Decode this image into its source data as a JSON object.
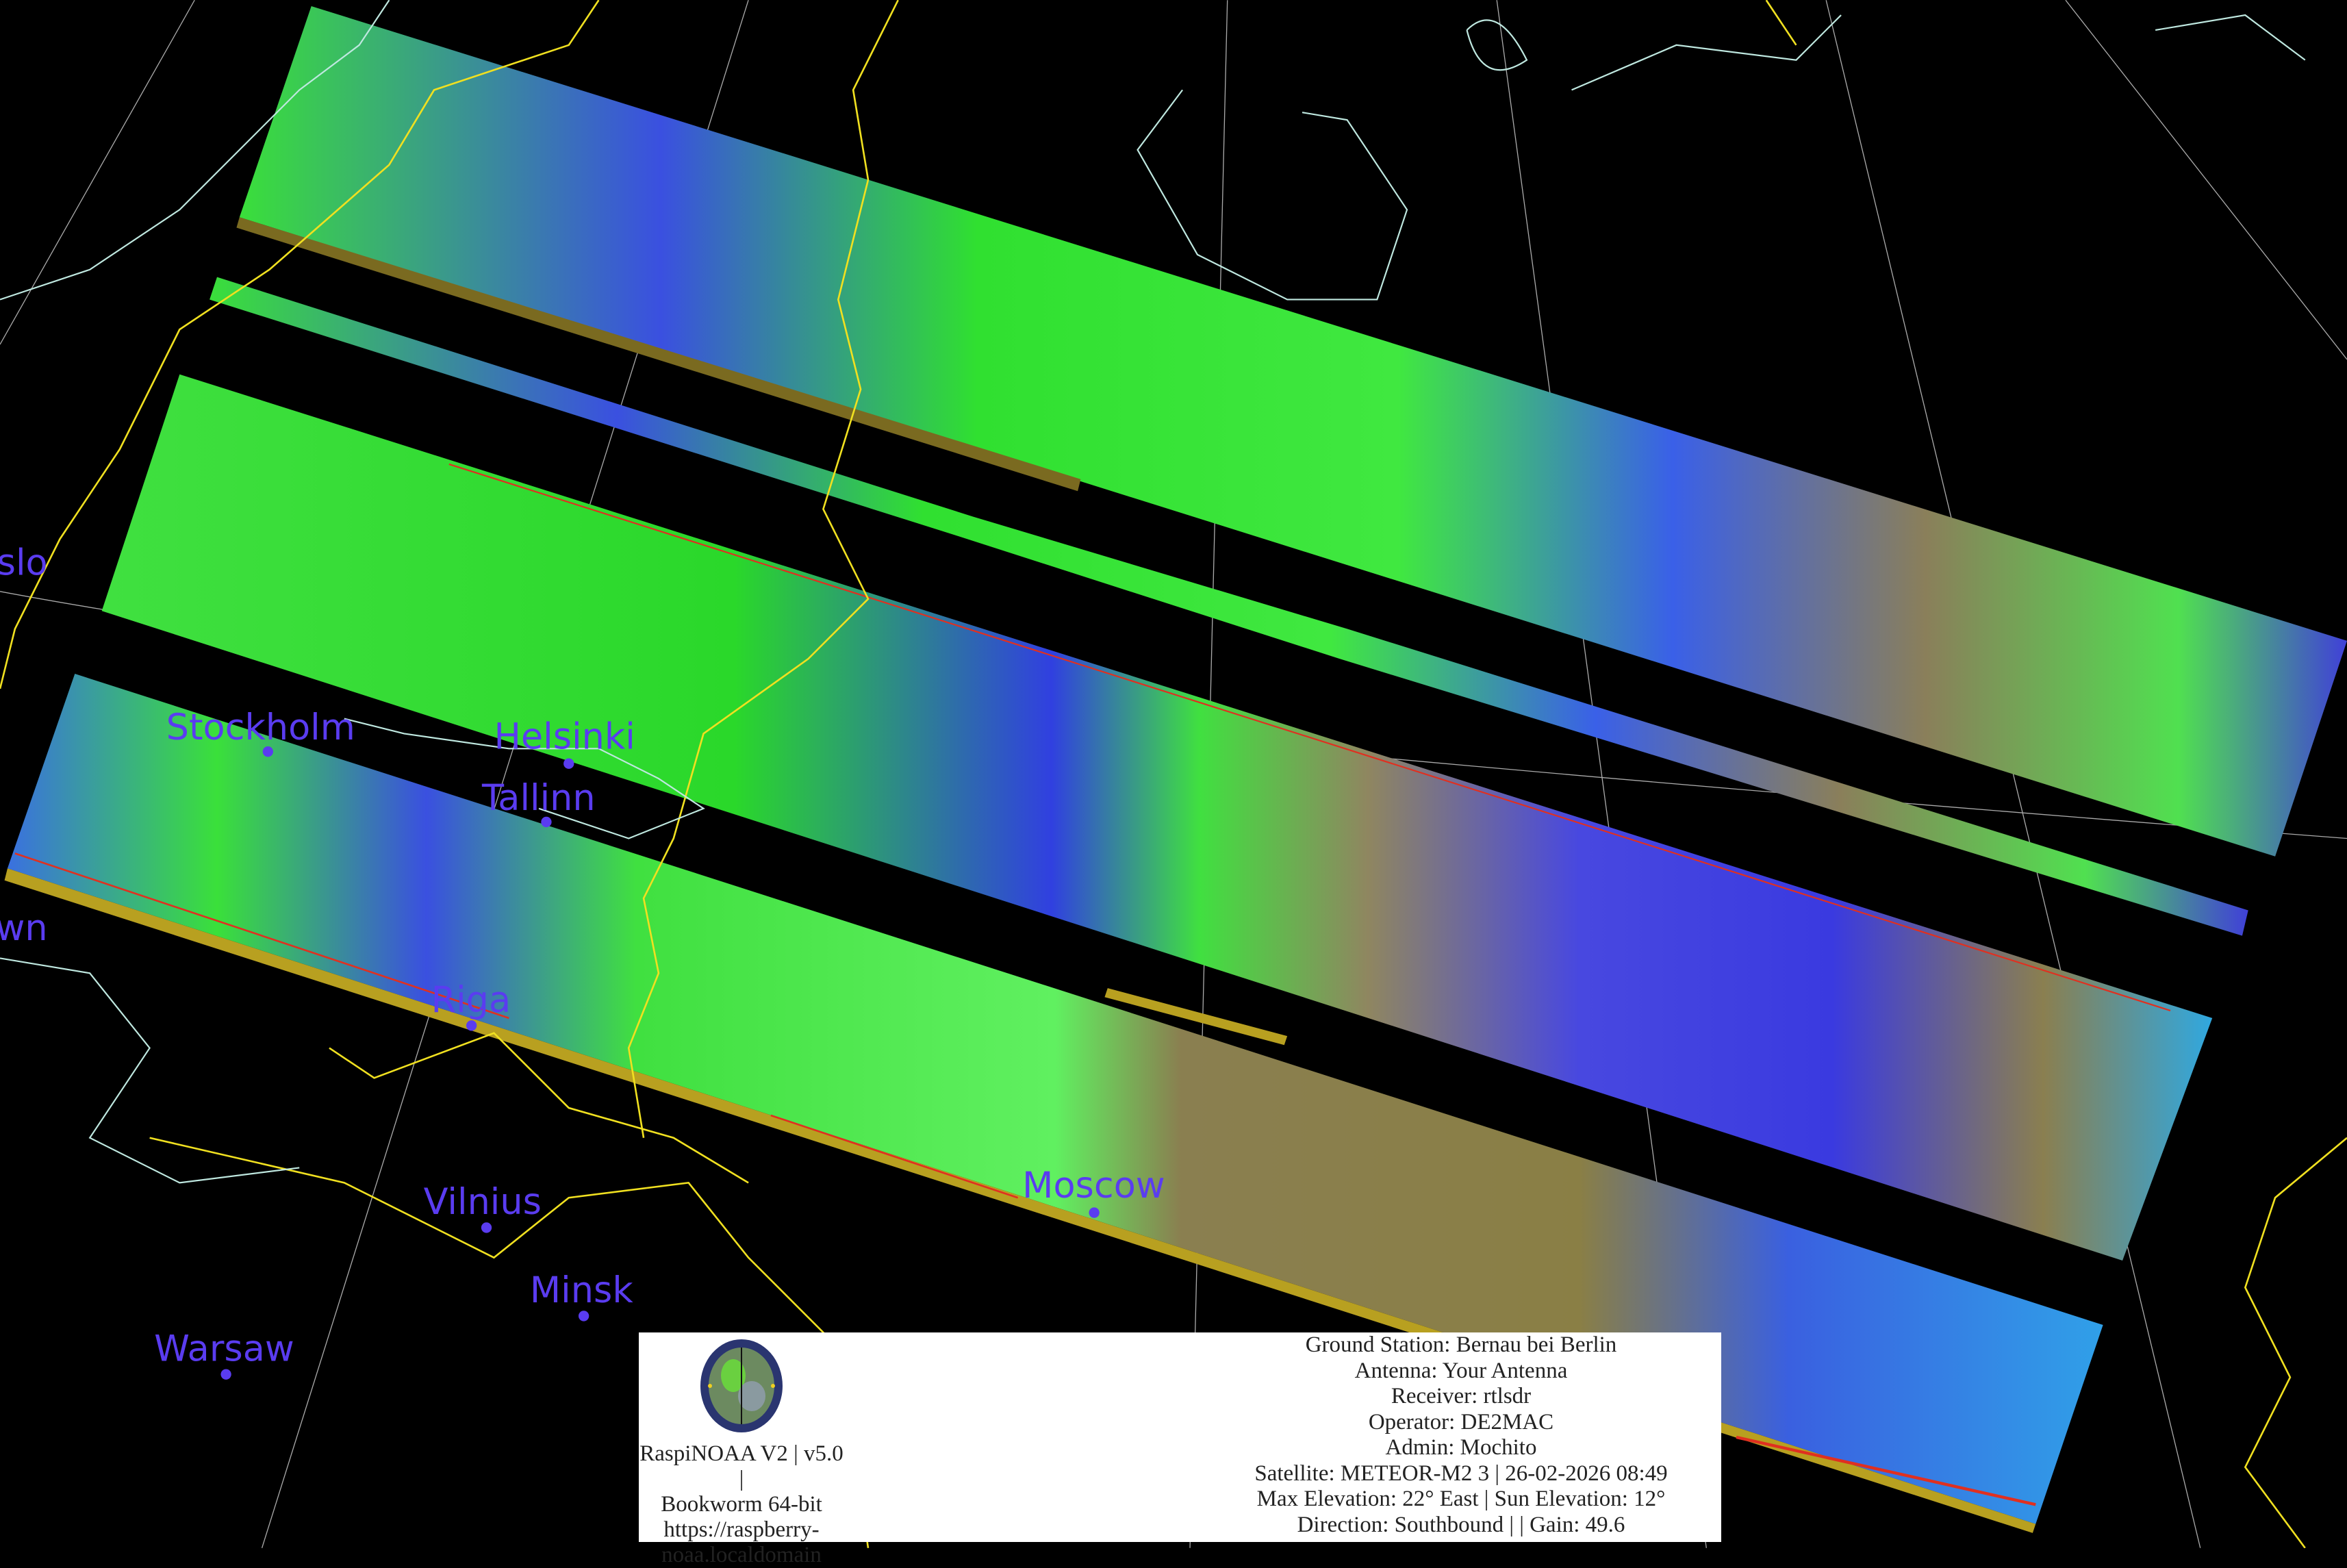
{
  "map": {
    "cities": [
      {
        "name": "slo"
      },
      {
        "name": "wn"
      },
      {
        "name": "Stockholm"
      },
      {
        "name": "Helsinki"
      },
      {
        "name": "Tallinn"
      },
      {
        "name": "Riga"
      },
      {
        "name": "Vilnius"
      },
      {
        "name": "Minsk"
      },
      {
        "name": "Warsaw"
      },
      {
        "name": "Moscow"
      }
    ],
    "colors": {
      "city_label": "#5a3cf0",
      "border": "#f0e020",
      "coastline": "#bfe8e0",
      "graticule": "#cccccc",
      "land_clear": "#22e022",
      "cloud": "#3a3ae0",
      "terrain": "#8a7f4a"
    }
  },
  "info": {
    "logo": "raspi-noaa-logo",
    "left_lines": [
      "RaspiNOAA V2 | v5.0 |",
      "Bookworm 64-bit",
      "https://raspberry-",
      "noaa.localdomain"
    ],
    "right_lines": [
      "Ground Station: Bernau bei Berlin",
      "Antenna: Your Antenna",
      "Receiver: rtlsdr",
      "Operator: DE2MAC",
      "Admin: Mochito",
      "Satellite: METEOR-M2 3 | 26-02-2026 08:49",
      "Max Elevation: 22° East | Sun Elevation: 12°",
      "Direction: Southbound | | Gain: 49.6"
    ]
  }
}
